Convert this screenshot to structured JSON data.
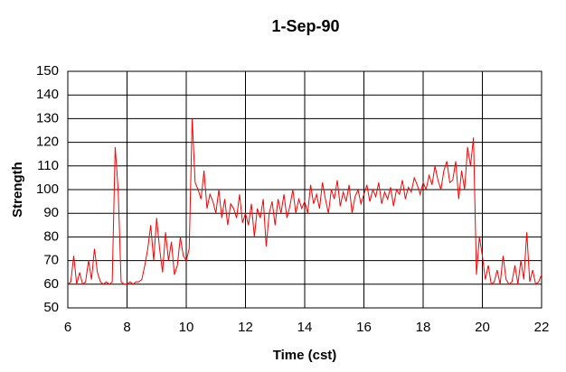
{
  "chart_data": {
    "type": "line",
    "title": "1-Sep-90",
    "x_label": "Time (cst)",
    "y_label": "Strength",
    "x": [
      6,
      6.1,
      6.2,
      6.3,
      6.4,
      6.5,
      6.6,
      6.7,
      6.8,
      6.9,
      7,
      7.1,
      7.2,
      7.3,
      7.4,
      7.5,
      7.6,
      7.7,
      7.8,
      7.9,
      8,
      8.1,
      8.2,
      8.3,
      8.4,
      8.5,
      8.6,
      8.7,
      8.8,
      8.9,
      9,
      9.1,
      9.2,
      9.3,
      9.4,
      9.5,
      9.6,
      9.7,
      9.8,
      9.9,
      10,
      10.1,
      10.2,
      10.3,
      10.4,
      10.5,
      10.6,
      10.7,
      10.8,
      10.9,
      11,
      11.1,
      11.2,
      11.3,
      11.4,
      11.5,
      11.6,
      11.7,
      11.8,
      11.9,
      12,
      12.1,
      12.2,
      12.3,
      12.4,
      12.5,
      12.6,
      12.7,
      12.8,
      12.9,
      13,
      13.1,
      13.2,
      13.3,
      13.4,
      13.5,
      13.6,
      13.7,
      13.8,
      13.9,
      14,
      14.1,
      14.2,
      14.3,
      14.4,
      14.5,
      14.6,
      14.7,
      14.8,
      14.9,
      15,
      15.1,
      15.2,
      15.3,
      15.4,
      15.5,
      15.6,
      15.7,
      15.8,
      15.9,
      16,
      16.1,
      16.2,
      16.3,
      16.4,
      16.5,
      16.6,
      16.7,
      16.8,
      16.9,
      17,
      17.1,
      17.2,
      17.3,
      17.4,
      17.5,
      17.6,
      17.7,
      17.8,
      17.9,
      18,
      18.1,
      18.2,
      18.3,
      18.4,
      18.5,
      18.6,
      18.7,
      18.8,
      18.9,
      19,
      19.1,
      19.2,
      19.3,
      19.4,
      19.5,
      19.6,
      19.7,
      19.8,
      19.9,
      20,
      20.1,
      20.2,
      20.3,
      20.4,
      20.5,
      20.6,
      20.7,
      20.8,
      20.9,
      21,
      21.1,
      21.2,
      21.3,
      21.4,
      21.5,
      21.6,
      21.7,
      21.8,
      21.9,
      22
    ],
    "series": [
      {
        "name": "Strength",
        "color": "#ff0000",
        "values": [
          60,
          61,
          72,
          60,
          65,
          60,
          61,
          70,
          62,
          75,
          65,
          61,
          60,
          61,
          60,
          61,
          118,
          100,
          61,
          60,
          60,
          61,
          60,
          61,
          61,
          62,
          68,
          75,
          85,
          70,
          88,
          75,
          65,
          82,
          70,
          78,
          64,
          68,
          80,
          72,
          70,
          75,
          130,
          103,
          100,
          96,
          108,
          92,
          98,
          95,
          90,
          100,
          88,
          96,
          85,
          94,
          92,
          88,
          98,
          86,
          90,
          85,
          94,
          80,
          92,
          88,
          96,
          76,
          90,
          95,
          85,
          96,
          90,
          98,
          88,
          93,
          100,
          90,
          96,
          92,
          95,
          90,
          102,
          94,
          98,
          92,
          103,
          96,
          90,
          100,
          96,
          104,
          93,
          99,
          95,
          102,
          90,
          97,
          100,
          94,
          98,
          102,
          95,
          100,
          97,
          103,
          94,
          99,
          96,
          101,
          93,
          100,
          98,
          104,
          96,
          101,
          99,
          105,
          102,
          98,
          103,
          100,
          106,
          102,
          110,
          104,
          100,
          108,
          112,
          103,
          104,
          112,
          96,
          108,
          100,
          118,
          110,
          122,
          64,
          80,
          72,
          62,
          68,
          60,
          61,
          66,
          60,
          72,
          62,
          60,
          61,
          68,
          60,
          70,
          62,
          82,
          61,
          66,
          60,
          61,
          64
        ]
      }
    ],
    "xlim": [
      6,
      22
    ],
    "xticks": [
      6,
      8,
      10,
      12,
      14,
      16,
      18,
      20,
      22
    ],
    "ylim": [
      50,
      150
    ],
    "yticks": [
      50,
      60,
      70,
      80,
      90,
      100,
      110,
      120,
      130,
      140,
      150
    ],
    "grid": true
  }
}
